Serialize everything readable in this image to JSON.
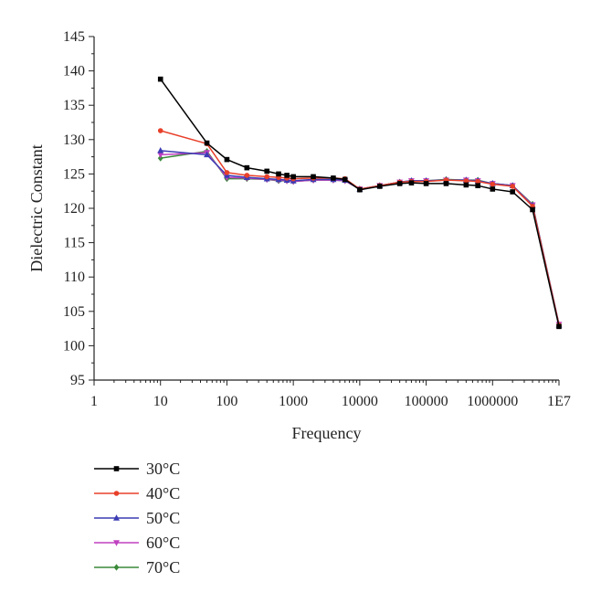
{
  "chart_data": {
    "type": "line",
    "title": "",
    "xlabel": "Frequency",
    "ylabel": "Dielectric Constant",
    "xscale": "log",
    "xlim": [
      1,
      10000000
    ],
    "ylim": [
      95,
      145
    ],
    "x_tick_labels": [
      "1",
      "10",
      "100",
      "1000",
      "10000",
      "100000",
      "1000000",
      "1E7"
    ],
    "y_tick_labels": [
      "95",
      "100",
      "105",
      "110",
      "115",
      "120",
      "125",
      "130",
      "135",
      "140",
      "145"
    ],
    "grid": false,
    "legend_position": "bottom-left",
    "series": [
      {
        "name": "30°C",
        "color": "#000000",
        "marker": "square",
        "x": [
          10,
          50,
          100,
          200,
          400,
          600,
          800,
          1000,
          2000,
          4000,
          6000,
          10000,
          20000,
          40000,
          60000,
          100000,
          200000,
          400000,
          600000,
          1000000,
          2000000,
          4000000,
          10000000
        ],
        "y": [
          138.8,
          129.5,
          127.1,
          125.9,
          125.4,
          125.0,
          124.8,
          124.6,
          124.6,
          124.4,
          124.2,
          122.7,
          123.2,
          123.6,
          123.7,
          123.6,
          123.6,
          123.4,
          123.3,
          122.8,
          122.4,
          119.8,
          102.8
        ]
      },
      {
        "name": "40°C",
        "color": "#e8402a",
        "marker": "circle",
        "x": [
          10,
          50,
          100,
          200,
          400,
          600,
          800,
          1000,
          2000,
          4000,
          6000,
          10000,
          20000,
          40000,
          60000,
          100000,
          200000,
          400000,
          600000,
          1000000,
          2000000,
          4000000,
          10000000
        ],
        "y": [
          131.3,
          129.4,
          125.2,
          124.8,
          124.6,
          124.5,
          124.4,
          124.3,
          124.4,
          124.4,
          124.3,
          122.8,
          123.3,
          123.8,
          123.9,
          123.9,
          124.1,
          124.0,
          123.9,
          123.5,
          123.2,
          120.3,
          103.0
        ]
      },
      {
        "name": "50°C",
        "color": "#3c3cb4",
        "marker": "triangle-up",
        "x": [
          10,
          50,
          100,
          200,
          400,
          600,
          800,
          1000,
          2000,
          4000,
          6000,
          10000,
          20000,
          40000,
          60000,
          100000,
          200000,
          400000,
          600000,
          1000000,
          2000000,
          4000000,
          10000000
        ],
        "y": [
          128.4,
          127.8,
          124.8,
          124.5,
          124.3,
          124.2,
          124.1,
          124.0,
          124.2,
          124.2,
          124.1,
          122.8,
          123.3,
          123.8,
          124.0,
          124.0,
          124.1,
          124.1,
          124.0,
          123.6,
          123.3,
          120.4,
          103.0
        ]
      },
      {
        "name": "60°C",
        "color": "#c040c0",
        "marker": "triangle-down",
        "x": [
          10,
          50,
          100,
          200,
          400,
          600,
          800,
          1000,
          2000,
          4000,
          6000,
          10000,
          20000,
          40000,
          60000,
          100000,
          200000,
          400000,
          600000,
          1000000,
          2000000,
          4000000,
          10000000
        ],
        "y": [
          127.8,
          128.1,
          124.5,
          124.4,
          124.2,
          124.1,
          124.0,
          123.9,
          124.1,
          124.1,
          124.0,
          122.8,
          123.3,
          123.8,
          124.0,
          124.0,
          124.1,
          124.1,
          124.0,
          123.6,
          123.3,
          120.5,
          103.1
        ]
      },
      {
        "name": "70°C",
        "color": "#3a8a3a",
        "marker": "diamond",
        "x": [
          10,
          50,
          100,
          200,
          400,
          600,
          800,
          1000,
          2000,
          4000,
          6000,
          10000,
          20000,
          40000,
          60000,
          100000,
          200000,
          400000,
          600000,
          1000000,
          2000000,
          4000000,
          10000000
        ],
        "y": [
          127.3,
          128.3,
          124.3,
          124.3,
          124.2,
          124.0,
          124.0,
          123.9,
          124.1,
          124.1,
          124.0,
          122.8,
          123.3,
          123.8,
          124.0,
          124.0,
          124.2,
          124.1,
          124.1,
          123.6,
          123.3,
          120.6,
          103.1
        ]
      }
    ]
  }
}
